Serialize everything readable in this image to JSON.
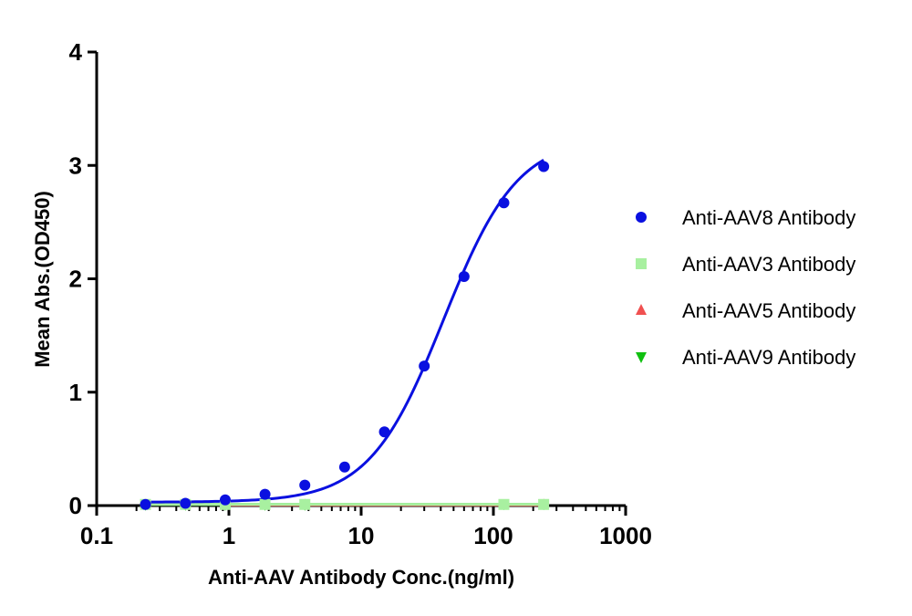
{
  "chart_data": {
    "type": "scatter",
    "title": "",
    "xlabel": "Anti-AAV Antibody  Conc.(ng/ml)",
    "ylabel": "Mean Abs.(OD450)",
    "xscale": "log",
    "xlim": [
      0.1,
      1000
    ],
    "ylim": [
      0,
      4
    ],
    "x_ticks": [
      0.1,
      1,
      10,
      100,
      1000
    ],
    "x_tick_labels": [
      "0.1",
      "1",
      "10",
      "100",
      "1000"
    ],
    "y_ticks": [
      0,
      1,
      2,
      3,
      4
    ],
    "y_tick_labels": [
      "0",
      "1",
      "2",
      "3",
      "4"
    ],
    "grid": false,
    "legend_position": "right",
    "series": [
      {
        "name": "Anti-AAV8 Antibody",
        "color": "#0a10e0",
        "marker": "circle",
        "x": [
          0.234,
          0.469,
          0.938,
          1.875,
          3.75,
          7.5,
          15,
          30,
          60,
          120,
          240
        ],
        "y": [
          0.01,
          0.02,
          0.05,
          0.1,
          0.18,
          0.34,
          0.65,
          1.23,
          2.02,
          2.67,
          2.99
        ],
        "fit": {
          "bottom": 0.03,
          "top": 3.25,
          "ec50": 42,
          "hill": 1.55
        }
      },
      {
        "name": "Anti-AAV3 Antibody",
        "color": "#a8f0a0",
        "marker": "square",
        "x": [
          0.234,
          0.469,
          0.938,
          1.875,
          3.75,
          120,
          240
        ],
        "y": [
          0.01,
          0.01,
          0.01,
          0.01,
          0.01,
          0.01,
          0.01
        ],
        "fit": {
          "flat": 0.01
        }
      },
      {
        "name": "Anti-AAV5 Antibody",
        "color": "#f05050",
        "marker": "triangle-up",
        "x": [
          0.938,
          1.875,
          3.75,
          240
        ],
        "y": [
          0.005,
          0.005,
          0.005,
          0.005
        ],
        "fit": {
          "flat": 0.005
        }
      },
      {
        "name": "Anti-AAV9 Antibody",
        "color": "#10c010",
        "marker": "triangle-down",
        "x": [
          0.234,
          0.469,
          0.938,
          1.875,
          3.75,
          120,
          240
        ],
        "y": [
          0.01,
          0.01,
          0.01,
          0.01,
          0.01,
          0.015,
          0.015
        ],
        "fit": {
          "flat": 0.01
        }
      }
    ]
  }
}
